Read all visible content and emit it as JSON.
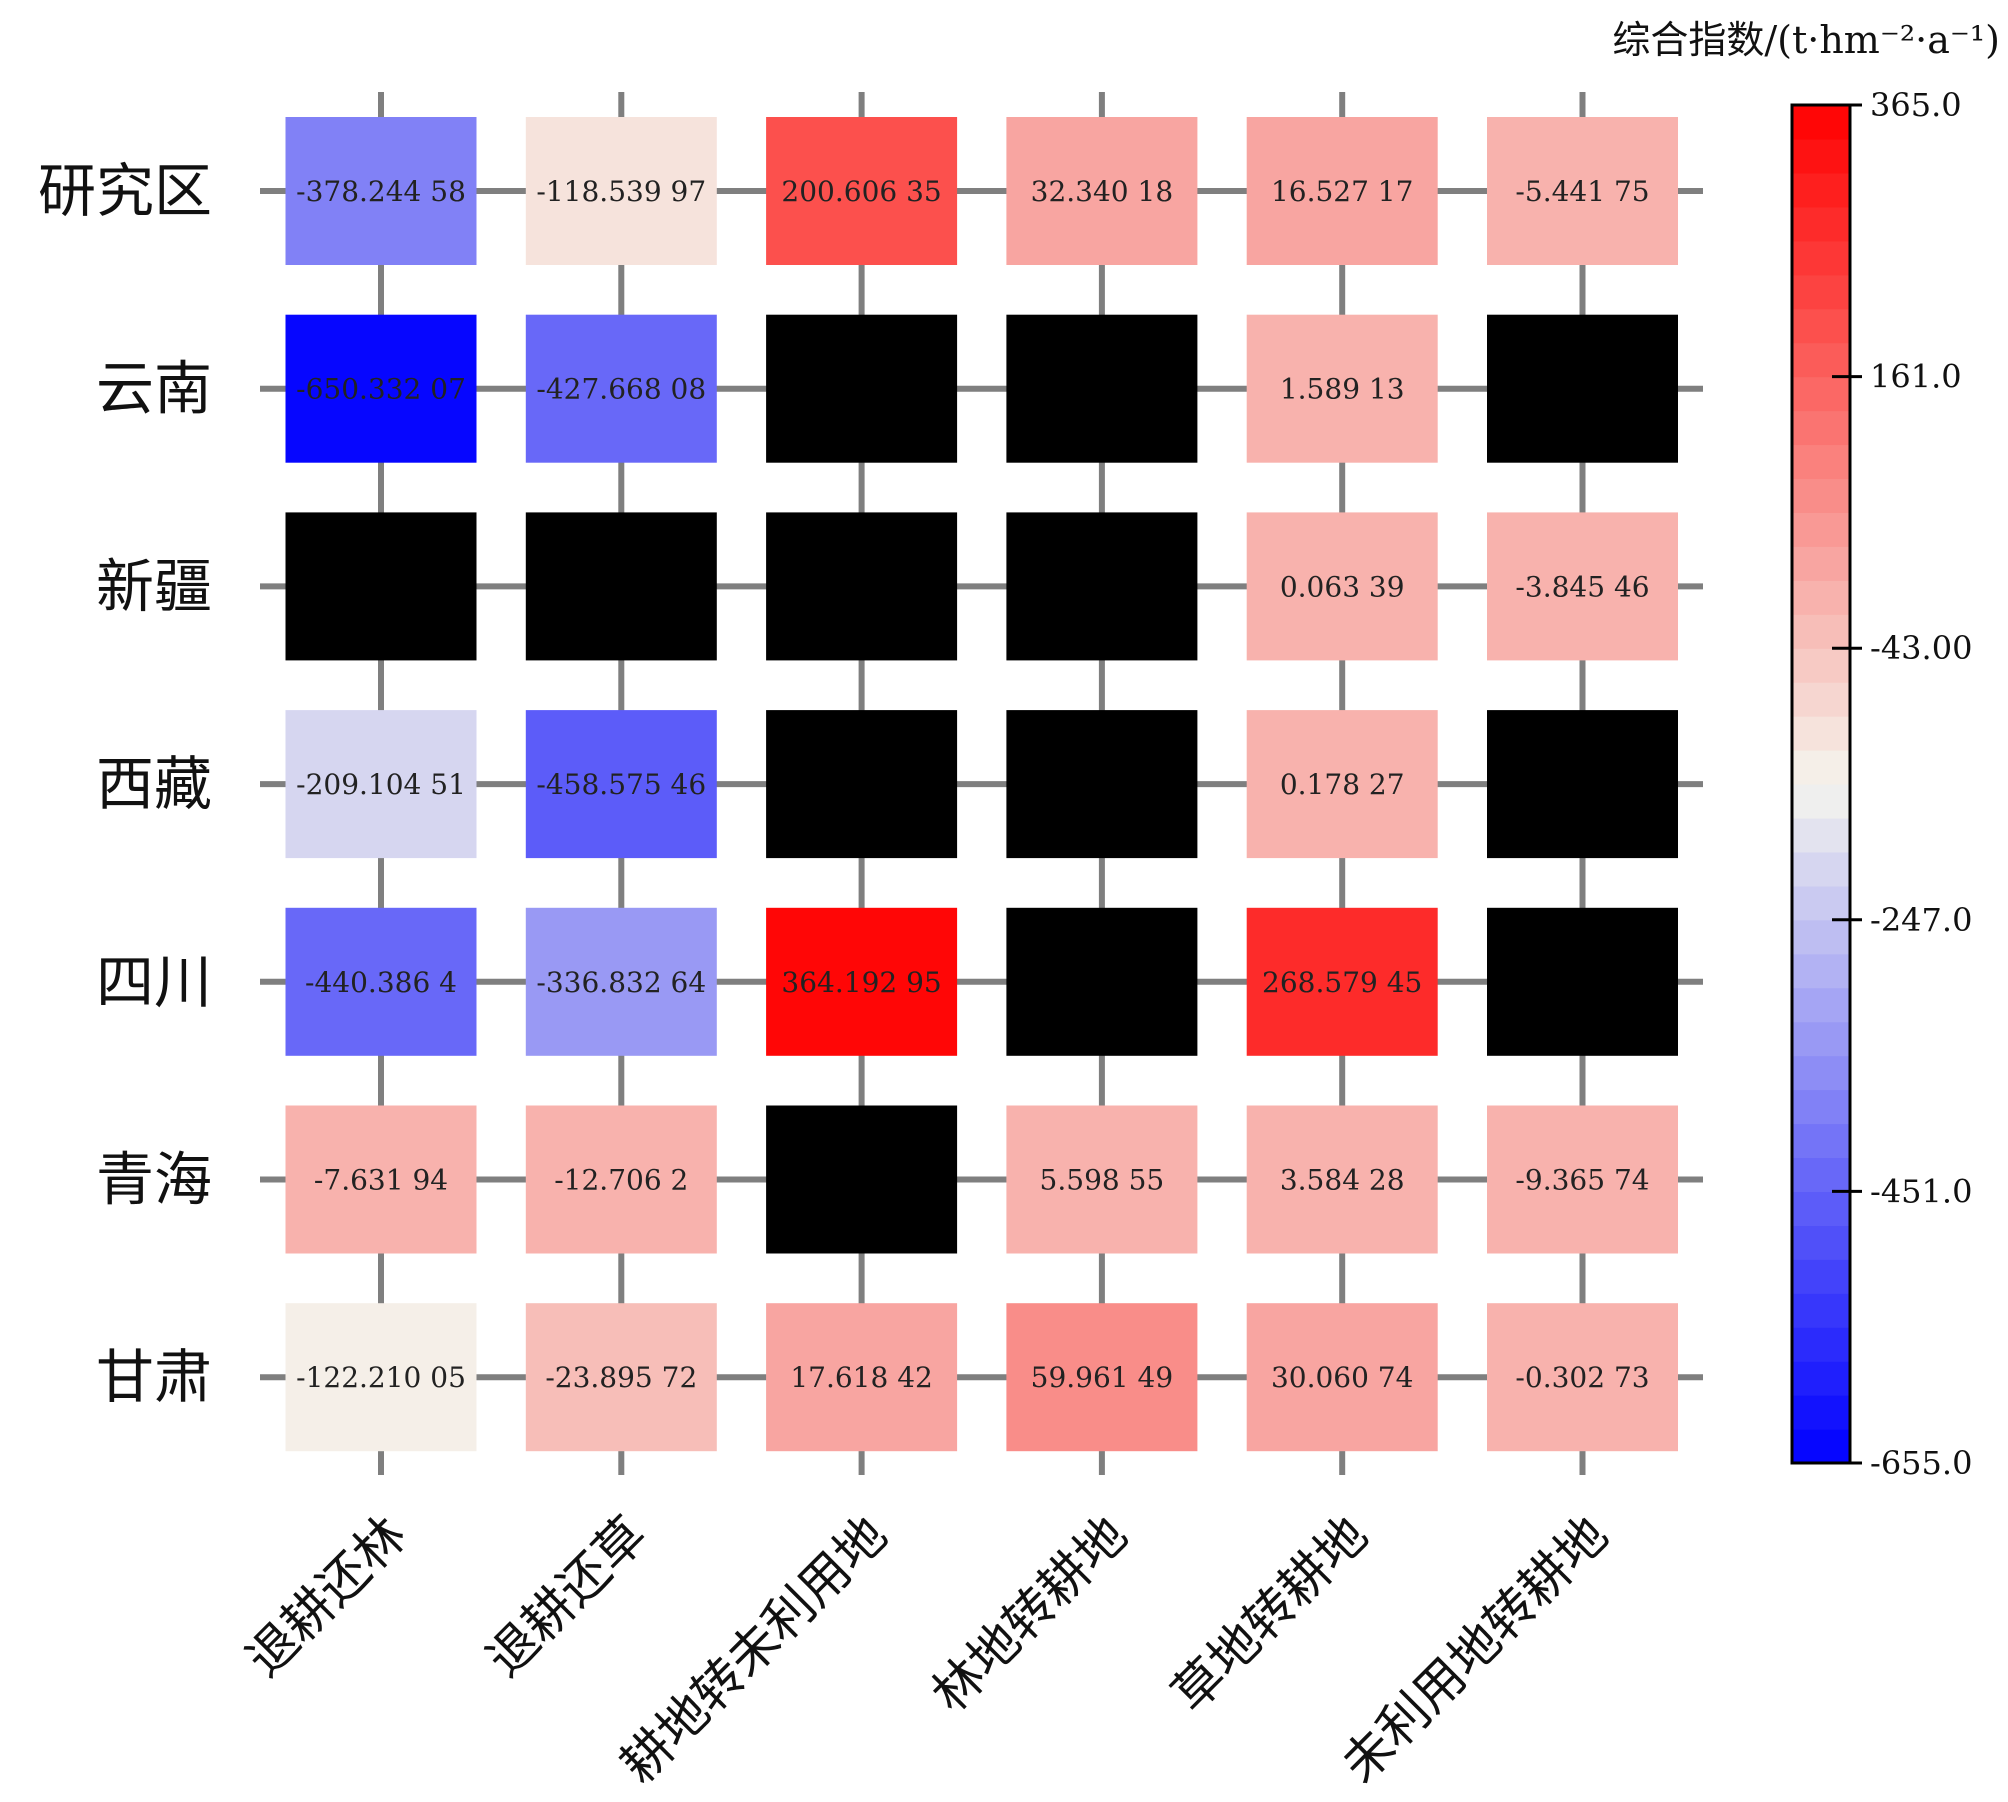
{
  "chart_data": {
    "type": "heatmap",
    "rows": [
      "研究区",
      "云南",
      "新疆",
      "西藏",
      "四川",
      "青海",
      "甘肃"
    ],
    "columns": [
      "退耕还林",
      "退耕还草",
      "耕地转未利用地",
      "林地转耕地",
      "草地转耕地",
      "未利用地转耕地"
    ],
    "values": [
      [
        -378.24458,
        -118.53997,
        200.60635,
        32.34018,
        16.52717,
        -5.44175
      ],
      [
        -650.33207,
        -427.66808,
        null,
        null,
        1.58913,
        null
      ],
      [
        null,
        null,
        null,
        null,
        0.06339,
        -3.84546
      ],
      [
        -209.10451,
        -458.57546,
        null,
        null,
        0.17827,
        null
      ],
      [
        -440.3864,
        -336.83264,
        364.19295,
        null,
        268.57945,
        null
      ],
      [
        -7.63194,
        -12.7062,
        null,
        5.59855,
        3.58428,
        -9.36574
      ],
      [
        -122.21005,
        -23.89572,
        17.61842,
        59.96149,
        30.06074,
        -0.30273
      ]
    ],
    "cell_labels": [
      [
        "-378.244 58",
        "-118.539 97",
        "200.606 35",
        "32.340 18",
        "16.527 17",
        "-5.441 75"
      ],
      [
        "-650.332 07",
        "-427.668 08",
        "",
        "",
        "1.589 13",
        ""
      ],
      [
        "",
        "",
        "",
        "",
        "0.063 39",
        "-3.845 46"
      ],
      [
        "-209.104 51",
        "-458.575 46",
        "",
        "",
        "0.178 27",
        ""
      ],
      [
        "-440.386 4",
        "-336.832 64",
        "364.192 95",
        "",
        "268.579 45",
        ""
      ],
      [
        "-7.631 94",
        "-12.706 2",
        "",
        "5.598 55",
        "3.584 28",
        "-9.365 74"
      ],
      [
        "-122.210 05",
        "-23.895 72",
        "17.618 42",
        "59.961 49",
        "30.060 74",
        "-0.302 73"
      ]
    ],
    "missing_color": "#000000",
    "colorbar": {
      "title": "综合指数/(t·hm⁻²·a⁻¹)",
      "min": -655.0,
      "max": 365.0,
      "ticks": [
        365.0,
        161.0,
        -43.0,
        -247.0,
        -451.0,
        -655.0
      ],
      "tick_labels": [
        "365.0",
        "161.0",
        "-43.00",
        "-247.0",
        "-451.0",
        "-655.0"
      ],
      "colormap": "bwr",
      "levels": 40
    },
    "colors": {
      "low": "#0000ff",
      "mid": "#f5f5ee",
      "high": "#ff0000",
      "grid_line": "#7f7f7f"
    }
  }
}
